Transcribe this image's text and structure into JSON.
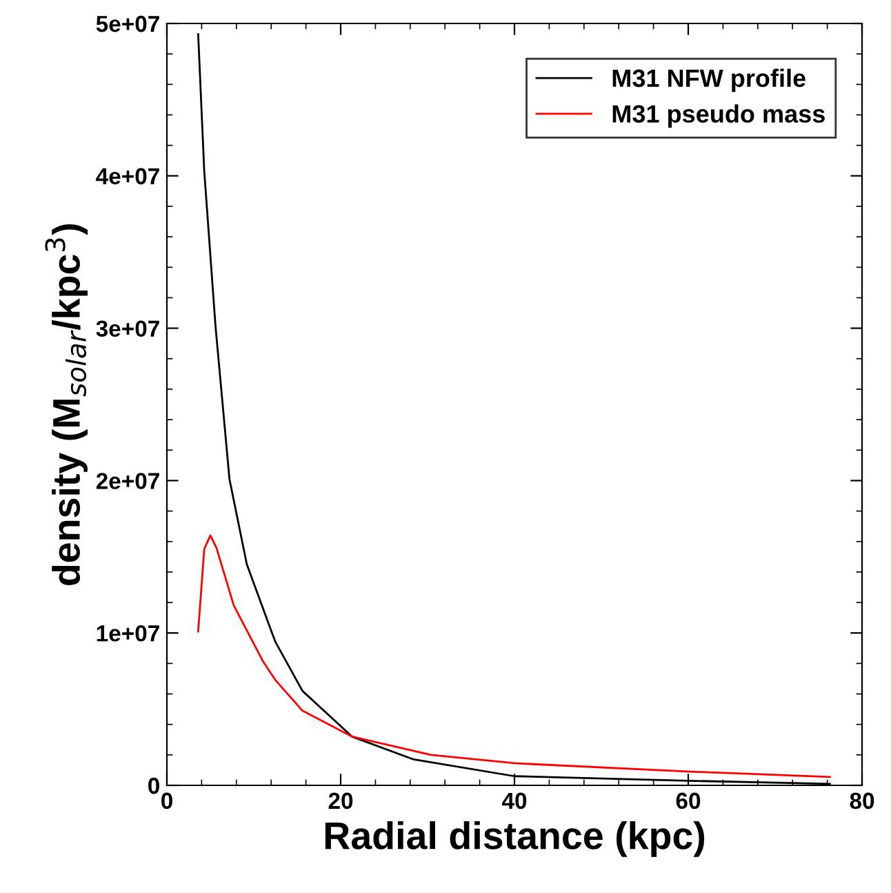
{
  "chart_data": {
    "type": "line",
    "xlabel": "Radial distance (kpc)",
    "ylabel": "density (M$_{solar}$/kpc$^{3}$)",
    "xlim": [
      0,
      80
    ],
    "xticks": [
      0,
      20,
      40,
      60,
      80
    ],
    "ylim": [
      0,
      50000000
    ],
    "yticks": [
      {
        "value": 0,
        "label": "0"
      },
      {
        "value": 10000000,
        "label": "1e+07"
      },
      {
        "value": 20000000,
        "label": "2e+07"
      },
      {
        "value": 30000000,
        "label": "3e+07"
      },
      {
        "value": 40000000,
        "label": "4e+07"
      },
      {
        "value": 50000000,
        "label": "5e+07"
      }
    ],
    "grid": false,
    "legend": "top right",
    "marker": "none",
    "line_style": "solid",
    "series": [
      {
        "name": "M31 NFW profile",
        "color": "#000000",
        "x": [
          3.6,
          4.3,
          5.6,
          7.2,
          9.2,
          12.1,
          12.5,
          15.6,
          21.3,
          28.4,
          40,
          60,
          76.3
        ],
        "values": [
          49300000,
          40300000,
          30100000,
          20100000,
          14500000,
          10000000,
          9400000,
          6200000,
          3200000,
          1700000,
          600000,
          300000,
          100000
        ]
      },
      {
        "name": "M31 pseudo mass",
        "color": "#ff0000",
        "x": [
          3.6,
          4.3,
          5.0,
          5.7,
          7.7,
          11.0,
          12.5,
          15.6,
          21.3,
          30.4,
          40,
          60.2,
          76.3
        ],
        "values": [
          10100000,
          15500000,
          16400000,
          15600000,
          11800000,
          8200000,
          6900000,
          4900000,
          3200000,
          2000000,
          1450000,
          900000,
          550000
        ]
      }
    ]
  }
}
